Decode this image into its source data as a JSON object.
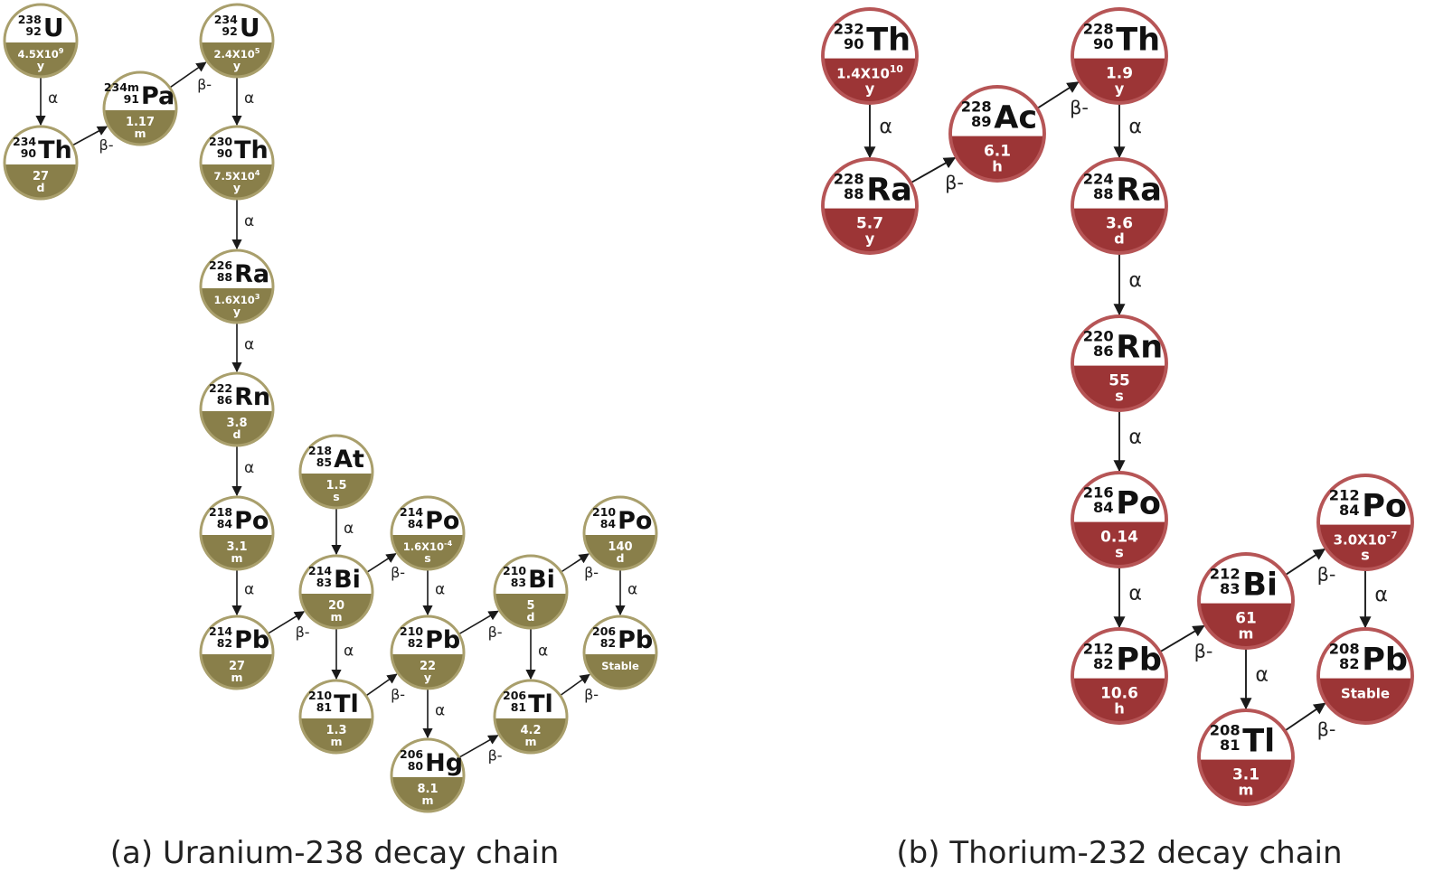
{
  "captions": {
    "uranium": "(a) Uranium-238 decay chain",
    "thorium": "(b) Thorium-232 decay chain"
  },
  "colors": {
    "uranium_fill": "#897F4A",
    "uranium_border": "#A99F6C",
    "thorium_fill": "#9C3536",
    "thorium_border": "#B65556",
    "arrow": "#1A1A1A"
  },
  "chains": [
    {
      "id": "uranium",
      "nuclides": [
        {
          "id": "u238",
          "mass": "238",
          "atomic": "92",
          "sym": "U",
          "hl": "4.5X10",
          "exp": "9",
          "unit": "y"
        },
        {
          "id": "th234",
          "mass": "234",
          "atomic": "90",
          "sym": "Th",
          "hl": "27",
          "exp": "",
          "unit": "d"
        },
        {
          "id": "pa234m",
          "mass": "234m",
          "atomic": "91",
          "sym": "Pa",
          "hl": "1.17",
          "exp": "",
          "unit": "m"
        },
        {
          "id": "u234",
          "mass": "234",
          "atomic": "92",
          "sym": "U",
          "hl": "2.4X10",
          "exp": "5",
          "unit": "y"
        },
        {
          "id": "th230",
          "mass": "230",
          "atomic": "90",
          "sym": "Th",
          "hl": "7.5X10",
          "exp": "4",
          "unit": "y"
        },
        {
          "id": "ra226",
          "mass": "226",
          "atomic": "88",
          "sym": "Ra",
          "hl": "1.6X10",
          "exp": "3",
          "unit": "y"
        },
        {
          "id": "rn222",
          "mass": "222",
          "atomic": "86",
          "sym": "Rn",
          "hl": "3.8",
          "exp": "",
          "unit": "d"
        },
        {
          "id": "po218",
          "mass": "218",
          "atomic": "84",
          "sym": "Po",
          "hl": "3.1",
          "exp": "",
          "unit": "m"
        },
        {
          "id": "pb214",
          "mass": "214",
          "atomic": "82",
          "sym": "Pb",
          "hl": "27",
          "exp": "",
          "unit": "m"
        },
        {
          "id": "at218",
          "mass": "218",
          "atomic": "85",
          "sym": "At",
          "hl": "1.5",
          "exp": "",
          "unit": "s"
        },
        {
          "id": "bi214",
          "mass": "214",
          "atomic": "83",
          "sym": "Bi",
          "hl": "20",
          "exp": "",
          "unit": "m"
        },
        {
          "id": "tl210",
          "mass": "210",
          "atomic": "81",
          "sym": "Tl",
          "hl": "1.3",
          "exp": "",
          "unit": "m"
        },
        {
          "id": "po214",
          "mass": "214",
          "atomic": "84",
          "sym": "Po",
          "hl": "1.6X10",
          "exp": "-4",
          "unit": "s"
        },
        {
          "id": "pb210",
          "mass": "210",
          "atomic": "82",
          "sym": "Pb",
          "hl": "22",
          "exp": "",
          "unit": "y"
        },
        {
          "id": "hg206",
          "mass": "206",
          "atomic": "80",
          "sym": "Hg",
          "hl": "8.1",
          "exp": "",
          "unit": "m"
        },
        {
          "id": "bi210",
          "mass": "210",
          "atomic": "83",
          "sym": "Bi",
          "hl": "5",
          "exp": "",
          "unit": "d"
        },
        {
          "id": "tl206",
          "mass": "206",
          "atomic": "81",
          "sym": "Tl",
          "hl": "4.2",
          "exp": "",
          "unit": "m"
        },
        {
          "id": "po210",
          "mass": "210",
          "atomic": "84",
          "sym": "Po",
          "hl": "140",
          "exp": "",
          "unit": "d"
        },
        {
          "id": "pb206",
          "mass": "206",
          "atomic": "82",
          "sym": "Pb",
          "hl": "Stable",
          "exp": "",
          "unit": ""
        }
      ],
      "decays": [
        {
          "from": "u238",
          "to": "th234",
          "type": "α"
        },
        {
          "from": "th234",
          "to": "pa234m",
          "type": "β-"
        },
        {
          "from": "pa234m",
          "to": "u234",
          "type": "β-"
        },
        {
          "from": "u234",
          "to": "th230",
          "type": "α"
        },
        {
          "from": "th230",
          "to": "ra226",
          "type": "α"
        },
        {
          "from": "ra226",
          "to": "rn222",
          "type": "α"
        },
        {
          "from": "rn222",
          "to": "po218",
          "type": "α"
        },
        {
          "from": "po218",
          "to": "pb214",
          "type": "α"
        },
        {
          "from": "at218",
          "to": "bi214",
          "type": "α"
        },
        {
          "from": "pb214",
          "to": "bi214",
          "type": "β-"
        },
        {
          "from": "bi214",
          "to": "tl210",
          "type": "α"
        },
        {
          "from": "bi214",
          "to": "po214",
          "type": "β-"
        },
        {
          "from": "po214",
          "to": "pb210",
          "type": "α"
        },
        {
          "from": "tl210",
          "to": "pb210",
          "type": "β-"
        },
        {
          "from": "pb210",
          "to": "hg206",
          "type": "α"
        },
        {
          "from": "pb210",
          "to": "bi210",
          "type": "β-"
        },
        {
          "from": "hg206",
          "to": "tl206",
          "type": "β-"
        },
        {
          "from": "bi210",
          "to": "tl206",
          "type": "α"
        },
        {
          "from": "bi210",
          "to": "po210",
          "type": "β-"
        },
        {
          "from": "tl206",
          "to": "pb206",
          "type": "β-"
        },
        {
          "from": "po210",
          "to": "pb206",
          "type": "α"
        }
      ]
    },
    {
      "id": "thorium",
      "nuclides": [
        {
          "id": "th232",
          "mass": "232",
          "atomic": "90",
          "sym": "Th",
          "hl": "1.4X10",
          "exp": "10",
          "unit": "y"
        },
        {
          "id": "ra228",
          "mass": "228",
          "atomic": "88",
          "sym": "Ra",
          "hl": "5.7",
          "exp": "",
          "unit": "y"
        },
        {
          "id": "ac228",
          "mass": "228",
          "atomic": "89",
          "sym": "Ac",
          "hl": "6.1",
          "exp": "",
          "unit": "h"
        },
        {
          "id": "th228",
          "mass": "228",
          "atomic": "90",
          "sym": "Th",
          "hl": "1.9",
          "exp": "",
          "unit": "y"
        },
        {
          "id": "ra224",
          "mass": "224",
          "atomic": "88",
          "sym": "Ra",
          "hl": "3.6",
          "exp": "",
          "unit": "d"
        },
        {
          "id": "rn220",
          "mass": "220",
          "atomic": "86",
          "sym": "Rn",
          "hl": "55",
          "exp": "",
          "unit": "s"
        },
        {
          "id": "po216",
          "mass": "216",
          "atomic": "84",
          "sym": "Po",
          "hl": "0.14",
          "exp": "",
          "unit": "s"
        },
        {
          "id": "pb212",
          "mass": "212",
          "atomic": "82",
          "sym": "Pb",
          "hl": "10.6",
          "exp": "",
          "unit": "h"
        },
        {
          "id": "bi212",
          "mass": "212",
          "atomic": "83",
          "sym": "Bi",
          "hl": "61",
          "exp": "",
          "unit": "m"
        },
        {
          "id": "tl208",
          "mass": "208",
          "atomic": "81",
          "sym": "Tl",
          "hl": "3.1",
          "exp": "",
          "unit": "m"
        },
        {
          "id": "po212",
          "mass": "212",
          "atomic": "84",
          "sym": "Po",
          "hl": "3.0X10",
          "exp": "-7",
          "unit": "s"
        },
        {
          "id": "pb208",
          "mass": "208",
          "atomic": "82",
          "sym": "Pb",
          "hl": "Stable",
          "exp": "",
          "unit": ""
        }
      ],
      "decays": [
        {
          "from": "th232",
          "to": "ra228",
          "type": "α"
        },
        {
          "from": "ra228",
          "to": "ac228",
          "type": "β-"
        },
        {
          "from": "ac228",
          "to": "th228",
          "type": "β-"
        },
        {
          "from": "th228",
          "to": "ra224",
          "type": "α"
        },
        {
          "from": "ra224",
          "to": "rn220",
          "type": "α"
        },
        {
          "from": "rn220",
          "to": "po216",
          "type": "α"
        },
        {
          "from": "po216",
          "to": "pb212",
          "type": "α"
        },
        {
          "from": "pb212",
          "to": "bi212",
          "type": "β-"
        },
        {
          "from": "bi212",
          "to": "tl208",
          "type": "α"
        },
        {
          "from": "bi212",
          "to": "po212",
          "type": "β-"
        },
        {
          "from": "tl208",
          "to": "pb208",
          "type": "β-"
        },
        {
          "from": "po212",
          "to": "pb208",
          "type": "α"
        }
      ]
    }
  ]
}
